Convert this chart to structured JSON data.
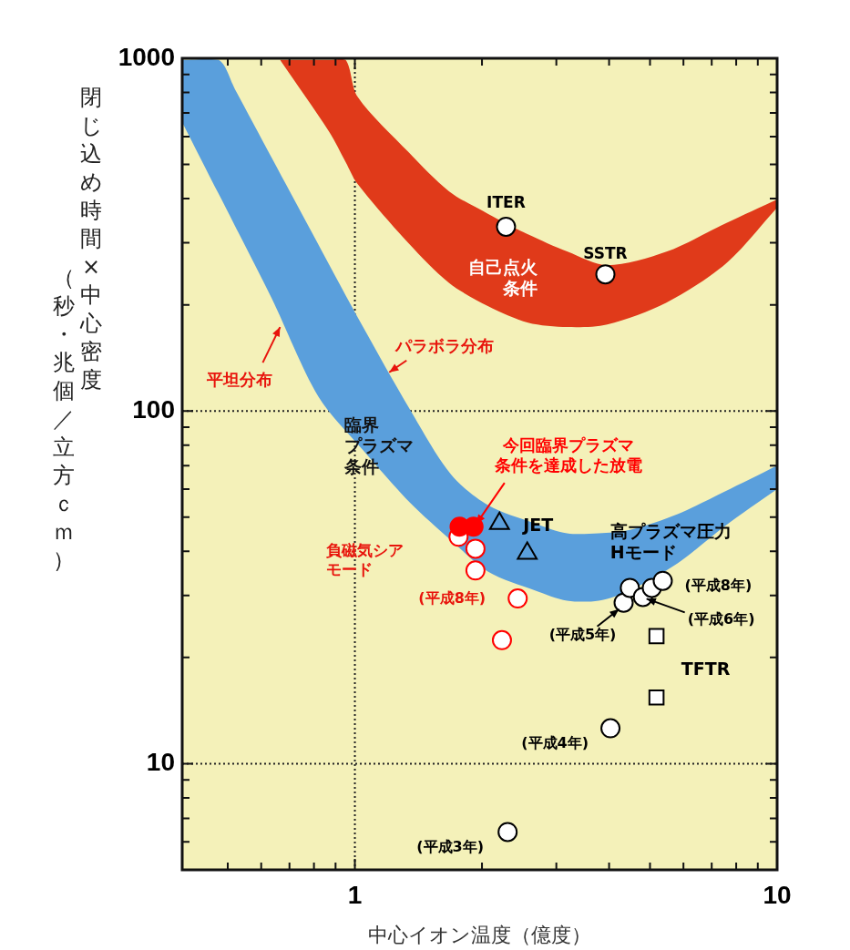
{
  "chart_data": {
    "type": "scatter",
    "xlabel": "中心イオン温度（億度）",
    "ylabel": "閉じ込め時間×中心密度（秒・兆個／立方ｃｍ）",
    "log": "xy",
    "xlim": [
      0.39,
      10
    ],
    "ylim": [
      5,
      1000
    ],
    "xticks": [
      {
        "value": 0.5,
        "label": null
      },
      {
        "value": 0.6,
        "label": null
      },
      {
        "value": 0.7,
        "label": null
      },
      {
        "value": 0.8,
        "label": null
      },
      {
        "value": 0.9,
        "label": null
      },
      1,
      {
        "value": 2,
        "label": null
      },
      {
        "value": 3,
        "label": null
      },
      {
        "value": 4,
        "label": null
      },
      {
        "value": 5,
        "label": null
      },
      {
        "value": 6,
        "label": null
      },
      {
        "value": 7,
        "label": null
      },
      {
        "value": 8,
        "label": null
      },
      {
        "value": 9,
        "label": null
      },
      10
    ],
    "yticks": [
      {
        "value": 6,
        "label": null
      },
      {
        "value": 7,
        "label": null
      },
      {
        "value": 8,
        "label": null
      },
      {
        "value": 9,
        "label": null
      },
      10,
      {
        "value": 20,
        "label": null
      },
      {
        "value": 30,
        "label": null
      },
      {
        "value": 40,
        "label": null
      },
      {
        "value": 50,
        "label": null
      },
      {
        "value": 60,
        "label": null
      },
      {
        "value": 70,
        "label": null
      },
      {
        "value": 80,
        "label": null
      },
      {
        "value": 90,
        "label": null
      },
      100,
      {
        "value": 200,
        "label": null
      },
      {
        "value": 300,
        "label": null
      },
      {
        "value": 400,
        "label": null
      },
      {
        "value": 500,
        "label": null
      },
      {
        "value": 600,
        "label": null
      },
      {
        "value": 700,
        "label": null
      },
      {
        "value": 800,
        "label": null
      },
      {
        "value": 900,
        "label": null
      },
      1000
    ],
    "grid": true,
    "legend": false,
    "series": [
      {
        "type": "line",
        "color": "#5a9fdc",
        "x": [
          0.39,
          0.476,
          0.52,
          0.635,
          0.819,
          1.04,
          1.35,
          1.69,
          2.07,
          2.67,
          3.18,
          3.78,
          4.48,
          5.81,
          7.49,
          10
        ],
        "values": [
          null,
          null,
          null,
          null,
          null,
          null,
          null,
          null,
          null,
          null,
          null,
          null,
          null,
          null,
          null,
          null
        ],
        "lower": [
          659,
          412,
          335,
          209,
          110,
          78,
          55,
          43,
          35,
          31,
          29,
          29,
          31,
          37,
          47,
          60
        ],
        "upper": [
          990,
          990,
          817,
          523,
          297,
          175,
          101,
          66,
          54,
          48,
          45,
          45,
          46,
          51,
          59,
          70
        ]
      },
      {
        "type": "line",
        "color": "#e03a1a",
        "x": [
          0.665,
          0.87,
          0.951,
          1.015,
          1.34,
          1.67,
          2.07,
          2.57,
          3.19,
          3.96,
          5.47,
          7.57,
          10
        ],
        "values": [
          null,
          null,
          null,
          null,
          null,
          null,
          null,
          null,
          null,
          null,
          null,
          null,
          null
        ],
        "lower": [
          990,
          618,
          508,
          440,
          299,
          231,
          198,
          178,
          173,
          176,
          203,
          262,
          377
        ],
        "upper": [
          990,
          990,
          990,
          778,
          542,
          420,
          362,
          317,
          283,
          259,
          283,
          341,
          398
        ]
      },
      {
        "type": "scatter",
        "marker": "triangle",
        "color": "#000000",
        "x": [
          2.2,
          2.56
        ],
        "values": [
          48,
          39.5
        ]
      },
      {
        "type": "scatter",
        "marker": "square",
        "color": "#000000",
        "colors": [
          "#ffffff",
          "#ffffff"
        ],
        "x": [
          5.18,
          5.18
        ],
        "values": [
          23,
          15.4
        ]
      },
      {
        "type": "scatter",
        "marker": "circle",
        "color": "#000000",
        "colors": [
          "#ffffff",
          "#ffffff",
          "#ffffff",
          "#ffffff",
          "#ffffff",
          "#ffffff",
          "#ffffff",
          "#ffffff",
          "#ffffff"
        ],
        "x": [
          2.28,
          3.92,
          4.33,
          4.48,
          4.81,
          5.05,
          5.36,
          4.03,
          2.3
        ],
        "values": [
          333,
          244,
          28.6,
          31.5,
          29.7,
          31.5,
          33,
          12.6,
          6.4
        ]
      },
      {
        "type": "scatter",
        "marker": "circle",
        "color": "#ff0000",
        "colors": [
          "#ffffff",
          "#ffffff",
          "#ffffff",
          "#ffffff",
          "#ffffff"
        ],
        "x": [
          1.76,
          1.93,
          1.93,
          2.43,
          2.23
        ],
        "values": [
          44,
          40.7,
          35.3,
          29.4,
          22.4
        ]
      },
      {
        "type": "scatter",
        "marker": "circle",
        "color": "#ff0000",
        "colors": [
          "#ff0000",
          "#ff0000"
        ],
        "x": [
          1.77,
          1.91
        ],
        "values": [
          47,
          47
        ]
      }
    ],
    "annotations": [
      {
        "text": "ITER",
        "x": 2.28,
        "y": 333
      },
      {
        "text": "SSTR",
        "x": 3.92,
        "y": 244
      },
      {
        "text": "パラボラ分布",
        "x": 1.2,
        "y": 128
      },
      {
        "text": "平坦分布",
        "x": 0.665,
        "y": 175
      },
      {
        "text": "今回臨界プラズマ条件を達成した放電",
        "x": 1.92,
        "y": 47
      },
      {
        "text": "JET",
        "x": 2.2,
        "y": 48
      },
      "負磁気シアモード",
      {
        "text": "(平成8年)",
        "x": 2.43,
        "y": 29.4
      },
      {
        "text": "高プラズマ圧力\nHモード",
        "x": 4.81,
        "y": 29.7
      },
      {
        "text": "(平成8年)",
        "x": 5.36,
        "y": 33
      },
      {
        "text": "(平成6年)",
        "x": 4.81,
        "y": 29.7
      },
      {
        "text": "(平成5年)",
        "x": 4.33,
        "y": 28.6
      },
      {
        "text": "TFTR",
        "x": 5.18,
        "y": 23
      },
      {
        "text": "(平成4年)",
        "x": 4.03,
        "y": 12.6
      },
      {
        "text": "(平成3年)",
        "x": 2.3,
        "y": 6.4
      },
      "臨界プラズマ条件",
      "自己点火条件"
    ]
  }
}
